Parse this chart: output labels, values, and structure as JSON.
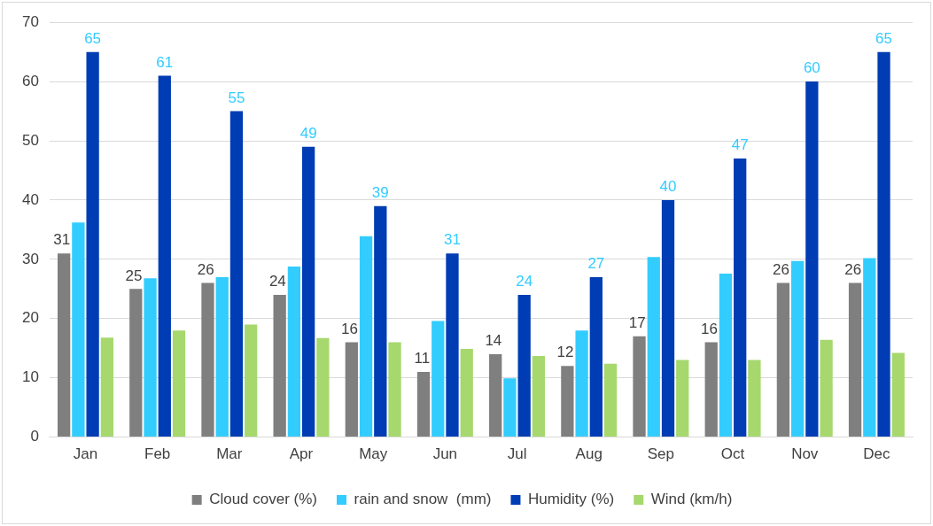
{
  "chart_data": {
    "type": "bar",
    "categories": [
      "Jan",
      "Feb",
      "Mar",
      "Apr",
      "May",
      "Jun",
      "Jul",
      "Aug",
      "Sep",
      "Oct",
      "Nov",
      "Dec"
    ],
    "series": [
      {
        "name": "Cloud cover (%)",
        "color": "#7f7f7f",
        "values": [
          31,
          25,
          26,
          24,
          16,
          11,
          14,
          12,
          17,
          16,
          26,
          26
        ],
        "value_labels": [
          "31",
          "25",
          "26",
          "24",
          "16",
          "11",
          "14",
          "12",
          "17",
          "16",
          "26",
          "26"
        ]
      },
      {
        "name": "rain and snow  (mm)",
        "color": "#33ccff",
        "values": [
          36.2,
          26.8,
          27.0,
          28.8,
          33.9,
          19.6,
          9.9,
          18.0,
          30.4,
          27.6,
          29.7,
          30.2
        ]
      },
      {
        "name": "Humidity (%)",
        "color": "#003cb4",
        "values": [
          65,
          61,
          55,
          49,
          39,
          31,
          24,
          27,
          40,
          47,
          60,
          65
        ],
        "value_labels": [
          "65",
          "61",
          "55",
          "49",
          "39",
          "31",
          "24",
          "27",
          "40",
          "47",
          "60",
          "65"
        ]
      },
      {
        "name": "Wind (km/h)",
        "color": "#a6d86e",
        "values": [
          16.8,
          18.0,
          19.0,
          16.7,
          16.0,
          14.9,
          13.7,
          12.4,
          13.0,
          13.0,
          16.4,
          14.2
        ]
      }
    ],
    "ylim": [
      0,
      70
    ],
    "yticks": [
      0,
      10,
      20,
      30,
      40,
      50,
      60,
      70
    ],
    "grid": "y",
    "legend": "bottom"
  }
}
